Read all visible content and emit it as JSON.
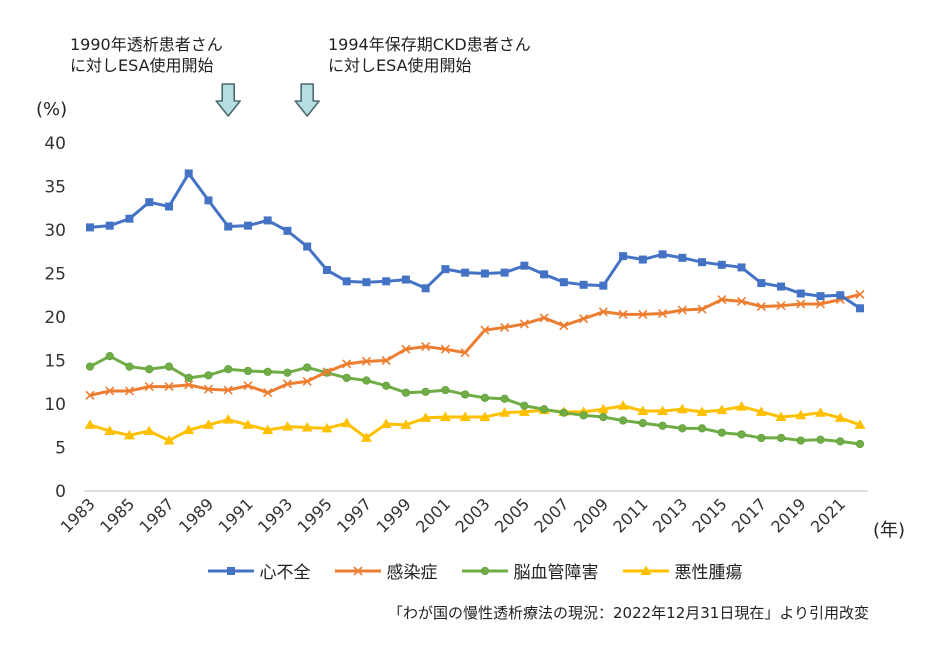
{
  "annotations": [
    {
      "line1": "1990年透析患者さん",
      "line2": "に対しESA使用開始",
      "year": 1990
    },
    {
      "line1": "1994年保存期CKD患者さん",
      "line2": "に対しESA使用開始",
      "year": 1994
    }
  ],
  "source": "「わが国の慢性透析療法の現況：2022年12月31日現在」より引用改変",
  "chart_data": {
    "type": "line",
    "ylabel": "(%)",
    "xlabel": "(年)",
    "ylim": [
      0,
      40
    ],
    "yticks": [
      0,
      5,
      10,
      15,
      20,
      25,
      30,
      35,
      40
    ],
    "xlim": [
      1983,
      2022
    ],
    "xticks": [
      1983,
      1985,
      1987,
      1989,
      1991,
      1993,
      1995,
      1997,
      1999,
      2001,
      2003,
      2005,
      2007,
      2009,
      2011,
      2013,
      2015,
      2017,
      2019,
      2021
    ],
    "grid": false,
    "legend": "bottom",
    "x": [
      1983,
      1984,
      1985,
      1986,
      1987,
      1988,
      1989,
      1990,
      1991,
      1992,
      1993,
      1994,
      1995,
      1996,
      1997,
      1998,
      1999,
      2000,
      2001,
      2002,
      2003,
      2004,
      2005,
      2006,
      2007,
      2008,
      2009,
      2010,
      2011,
      2012,
      2013,
      2014,
      2015,
      2016,
      2017,
      2018,
      2019,
      2020,
      2021,
      2022
    ],
    "series": [
      {
        "name": "心不全",
        "color": "#4472c4",
        "marker": "square",
        "values": [
          30.3,
          30.5,
          31.3,
          33.2,
          32.7,
          36.5,
          33.4,
          30.4,
          30.5,
          31.1,
          29.9,
          28.1,
          25.4,
          24.1,
          24.0,
          24.1,
          24.3,
          23.3,
          25.5,
          25.1,
          25.0,
          25.1,
          25.9,
          24.9,
          24.0,
          23.7,
          23.6,
          27.0,
          26.6,
          27.2,
          26.8,
          26.3,
          26.0,
          25.7,
          23.9,
          23.5,
          22.7,
          22.4,
          22.5,
          21.0
        ]
      },
      {
        "name": "感染症",
        "color": "#ed7d31",
        "marker": "x",
        "values": [
          11.0,
          11.5,
          11.5,
          12.0,
          12.0,
          12.2,
          11.7,
          11.6,
          12.1,
          11.3,
          12.3,
          12.6,
          13.7,
          14.6,
          14.9,
          15.0,
          16.3,
          16.6,
          16.3,
          15.9,
          18.5,
          18.8,
          19.2,
          19.9,
          19.0,
          19.8,
          20.6,
          20.3,
          20.3,
          20.4,
          20.8,
          20.9,
          22.0,
          21.8,
          21.2,
          21.3,
          21.5,
          21.5,
          22.0,
          22.6
        ]
      },
      {
        "name": "脳血管障害",
        "color": "#70ad47",
        "marker": "circle",
        "values": [
          14.3,
          15.5,
          14.3,
          14.0,
          14.3,
          13.0,
          13.3,
          14.0,
          13.8,
          13.7,
          13.6,
          14.2,
          13.6,
          13.0,
          12.7,
          12.1,
          11.3,
          11.4,
          11.6,
          11.1,
          10.7,
          10.6,
          9.8,
          9.4,
          9.0,
          8.7,
          8.5,
          8.1,
          7.8,
          7.5,
          7.2,
          7.2,
          6.7,
          6.5,
          6.1,
          6.1,
          5.8,
          5.9,
          5.7,
          5.4
        ]
      },
      {
        "name": "悪性腫瘍",
        "color": "#ffc000",
        "marker": "triangle",
        "values": [
          7.6,
          6.9,
          6.4,
          6.9,
          5.8,
          7.0,
          7.6,
          8.2,
          7.6,
          7.0,
          7.4,
          7.3,
          7.2,
          7.8,
          6.1,
          7.7,
          7.6,
          8.4,
          8.5,
          8.5,
          8.5,
          9.0,
          9.1,
          9.3,
          9.1,
          9.1,
          9.4,
          9.8,
          9.2,
          9.2,
          9.4,
          9.1,
          9.3,
          9.7,
          9.1,
          8.5,
          8.7,
          9.0,
          8.4,
          7.6
        ]
      }
    ]
  }
}
